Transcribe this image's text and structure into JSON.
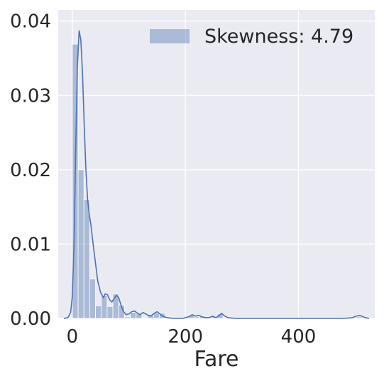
{
  "chart_data": {
    "type": "histogram",
    "xlabel": "Fare",
    "ylabel": "",
    "xlim": [
      -25,
      535
    ],
    "ylim": [
      0,
      0.0415
    ],
    "xticks": [
      0,
      200,
      400
    ],
    "yticks": [
      0.0,
      0.01,
      0.02,
      0.03,
      0.04
    ],
    "ytick_labels": [
      "0.00",
      "0.01",
      "0.02",
      "0.03",
      "0.04"
    ],
    "grid": true,
    "legend": {
      "placement": "top-right",
      "label": "Skewness: 4.79"
    },
    "colors": {
      "bars": "#4c72b0",
      "kde": "#4c72b0",
      "background": "#eaeaf2",
      "grid": "#ffffff"
    },
    "bins": {
      "edges": [
        0,
        10.25,
        20.5,
        30.75,
        41,
        51.25,
        61.5,
        71.75,
        82,
        92.25,
        102.5,
        112.75,
        123,
        133.25,
        143.5,
        153.75,
        164,
        174.25,
        184.5,
        194.75,
        205,
        215.25,
        225.5,
        235.75,
        246,
        256.25,
        266.5,
        276.75,
        287,
        297.25,
        307.5,
        317.75,
        328,
        338.25,
        348.5,
        358.75,
        369,
        379.25,
        389.5,
        399.75,
        410,
        420.25,
        430.5,
        440.75,
        451,
        461.25,
        471.5,
        481.75,
        492,
        502.25,
        512.5
      ],
      "density": [
        0.0369,
        0.02,
        0.016,
        0.0053,
        0.0017,
        0.0031,
        0.0016,
        0.0033,
        0.0018,
        0.0002,
        0.0008,
        0.0006,
        0.0001,
        0.0005,
        0.0007,
        0.0007,
        0.0002,
        0.0,
        0.0,
        0.0,
        0.0004,
        0.0002,
        0.0003,
        0.0001,
        0.0002,
        0.0006,
        0.0,
        0.0,
        0.0,
        0.0,
        0.0,
        0.0,
        0.0,
        0.0,
        0.0,
        0.0,
        0.0,
        0.0,
        0.0,
        0.0,
        0.0,
        0.0,
        0.0,
        0.0,
        0.0,
        0.0,
        0.0,
        0.0,
        0.0,
        0.0002
      ]
    },
    "kde": {
      "x": [
        -15,
        -8,
        -3,
        0,
        3,
        6,
        9,
        12,
        15,
        18,
        21,
        24,
        27,
        30,
        33,
        36,
        40,
        45,
        50,
        55,
        58,
        62,
        66,
        70,
        74,
        78,
        82,
        86,
        90,
        95,
        100,
        105,
        110,
        115,
        120,
        125,
        130,
        135,
        140,
        145,
        150,
        155,
        160,
        168,
        180,
        195,
        205,
        212,
        218,
        224,
        230,
        236,
        242,
        248,
        254,
        260,
        264,
        268,
        275,
        290,
        310,
        350,
        400,
        450,
        480,
        495,
        502,
        508,
        512,
        518,
        525
      ],
      "y": [
        0.0,
        0.0001,
        0.0008,
        0.003,
        0.01,
        0.023,
        0.034,
        0.0387,
        0.0375,
        0.033,
        0.026,
        0.02,
        0.016,
        0.014,
        0.0125,
        0.0105,
        0.008,
        0.005,
        0.0035,
        0.0028,
        0.0033,
        0.0032,
        0.0025,
        0.0022,
        0.0027,
        0.0031,
        0.0028,
        0.0018,
        0.001,
        0.0005,
        0.0006,
        0.0009,
        0.001,
        0.0007,
        0.0005,
        0.0008,
        0.0006,
        0.0004,
        0.0004,
        0.0007,
        0.0009,
        0.0006,
        0.0003,
        0.0001,
        0.0,
        0.0,
        0.0002,
        0.0005,
        0.0003,
        0.0004,
        0.0002,
        0.0001,
        0.0001,
        0.0003,
        0.0001,
        0.0004,
        0.0007,
        0.0004,
        0.0001,
        0.0,
        0.0,
        0.0,
        0.0,
        0.0,
        0.0,
        0.0001,
        0.0003,
        0.0004,
        0.0003,
        0.0001,
        0.0
      ]
    }
  }
}
